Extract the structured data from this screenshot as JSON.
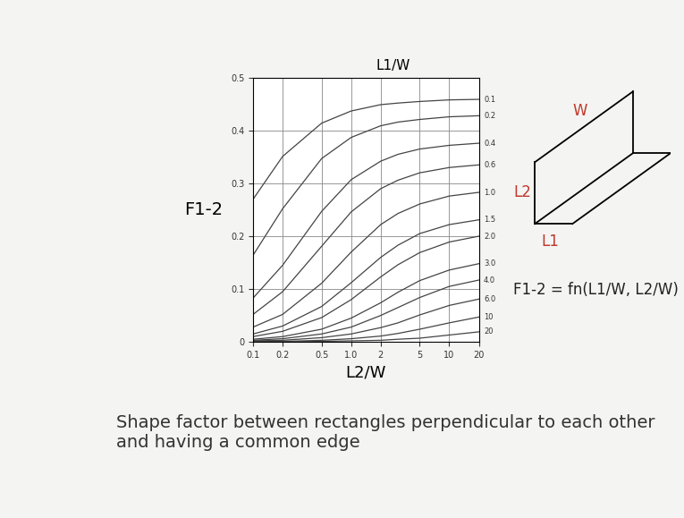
{
  "chart_data": {
    "type": "line",
    "title": "Shape factor between rectangles perpendicular to each other and having a common edge",
    "x_label": "L2/W",
    "y_label": "F1-2",
    "series_label": "L1/W",
    "sketch_labels": [
      {
        "text": "W",
        "color": "#c0392b"
      },
      {
        "text": "L2",
        "color": "#c0392b"
      },
      {
        "text": "L1",
        "color": "#c0392b"
      }
    ],
    "formula": {
      "text": "F1-2 = fn(L1/W, L2/W)",
      "color": "#222222"
    },
    "log": "x",
    "grid": true,
    "xlim": [
      0.1,
      20
    ],
    "xticks": [
      0.1,
      0.2,
      0.5,
      {
        "value": 1,
        "label": "1.0"
      },
      2,
      5,
      10,
      20
    ],
    "ylim": [
      0,
      0.5
    ],
    "yticks": [
      0,
      0.1,
      0.2,
      0.3,
      0.4,
      0.5
    ],
    "x": [
      0.1,
      0.2,
      0.5,
      1,
      2,
      3,
      5,
      10,
      20
    ],
    "series": [
      {
        "name": "0.1",
        "color": "#444444",
        "values": [
          0.27,
          0.351,
          0.414,
          0.437,
          0.449,
          0.452,
          0.455,
          0.458,
          0.459
        ]
      },
      {
        "name": "0.2",
        "color": "#444444",
        "values": [
          0.164,
          0.252,
          0.347,
          0.387,
          0.409,
          0.416,
          0.421,
          0.426,
          0.428
        ]
      },
      {
        "name": "0.4",
        "color": "#444444",
        "values": [
          0.083,
          0.145,
          0.247,
          0.307,
          0.342,
          0.355,
          0.365,
          0.372,
          0.376
        ]
      },
      {
        "name": "0.6",
        "color": "#444444",
        "values": [
          0.052,
          0.095,
          0.181,
          0.246,
          0.29,
          0.306,
          0.32,
          0.33,
          0.335
        ]
      },
      {
        "name": "1.0",
        "color": "#444444",
        "values": [
          0.028,
          0.052,
          0.111,
          0.17,
          0.222,
          0.243,
          0.261,
          0.276,
          0.283
        ]
      },
      {
        "name": "1.5",
        "color": "#444444",
        "values": [
          0.015,
          0.03,
          0.067,
          0.112,
          0.16,
          0.183,
          0.205,
          0.222,
          0.231
        ]
      },
      {
        "name": "2.0",
        "color": "#444444",
        "values": [
          0.01,
          0.02,
          0.046,
          0.08,
          0.123,
          0.146,
          0.169,
          0.189,
          0.2
        ]
      },
      {
        "name": "3.0",
        "color": "#444444",
        "values": [
          0.005,
          0.01,
          0.024,
          0.045,
          0.074,
          0.094,
          0.116,
          0.136,
          0.148
        ]
      },
      {
        "name": "4.0",
        "color": "#444444",
        "values": [
          0.003,
          0.006,
          0.015,
          0.028,
          0.05,
          0.065,
          0.084,
          0.105,
          0.117
        ]
      },
      {
        "name": "6.0",
        "color": "#444444",
        "values": [
          0.002,
          0.003,
          0.008,
          0.015,
          0.027,
          0.036,
          0.051,
          0.069,
          0.081
        ]
      },
      {
        "name": "10",
        "color": "#444444",
        "values": [
          0.001,
          0.001,
          0.003,
          0.006,
          0.011,
          0.016,
          0.024,
          0.036,
          0.047
        ]
      },
      {
        "name": "20",
        "color": "#444444",
        "values": [
          0.0,
          0.0,
          0.001,
          0.002,
          0.003,
          0.005,
          0.007,
          0.013,
          0.019
        ]
      }
    ]
  }
}
